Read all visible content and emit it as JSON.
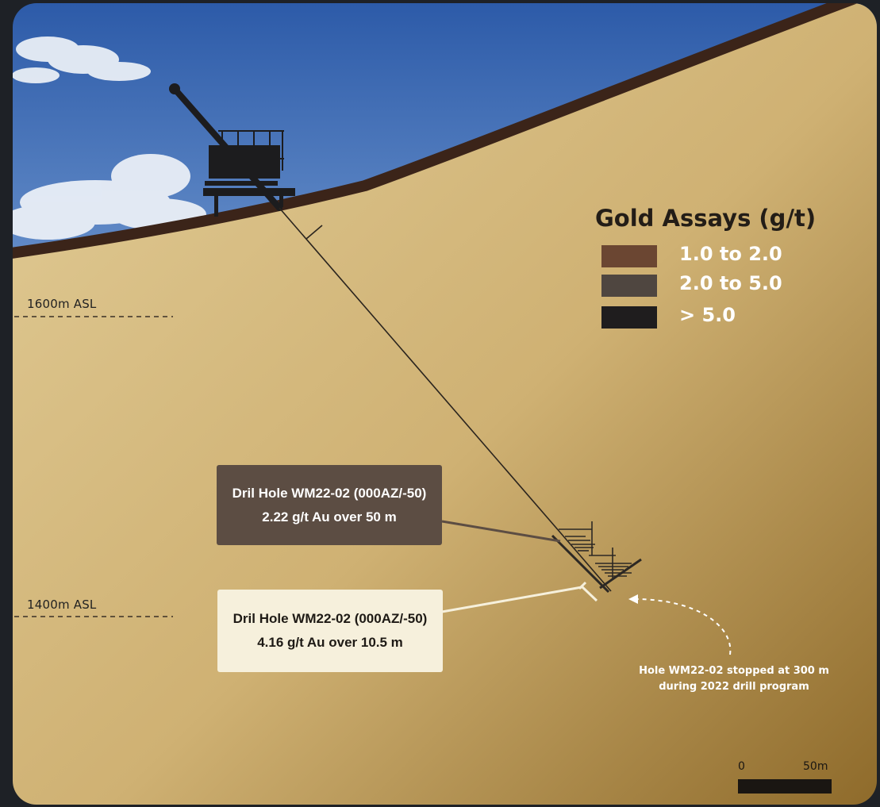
{
  "elevation_labels": {
    "upper": "1600m ASL",
    "lower": "1400m ASL"
  },
  "legend": {
    "title": "Gold Assays (g/t)",
    "items": [
      {
        "label": "1.0 to 2.0",
        "color": "#6b4632"
      },
      {
        "label": "2.0 to 5.0",
        "color": "#4f4640"
      },
      {
        "label": "> 5.0",
        "color": "#1f1d1e"
      }
    ]
  },
  "callouts": {
    "upper": {
      "line1": "Dril Hole WM22-02 (000AZ/-50)",
      "line2": "2.22 g/t Au over 50 m"
    },
    "lower": {
      "line1": "Dril Hole WM22-02 (000AZ/-50)",
      "line2": "4.16 g/t Au over 10.5 m"
    }
  },
  "stop_note": {
    "line1": "Hole WM22-02 stopped at 300 m",
    "line2": "during 2022 drill program"
  },
  "scale_bar": {
    "start": "0",
    "end": "50m"
  },
  "colors": {
    "sky": "#3f6fb8",
    "ground_light": "#d8bf85",
    "ground_dark": "#8c6a2e",
    "topsoil": "#3b2419",
    "rig": "#1c1c1e"
  }
}
